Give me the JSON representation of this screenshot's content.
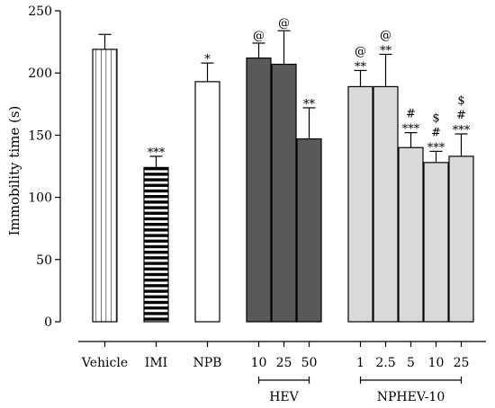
{
  "chart_data": {
    "type": "bar",
    "xlabel": "",
    "ylabel": "Immobility time (s)",
    "ylim": [
      0,
      250
    ],
    "yticks": [
      0,
      50,
      100,
      150,
      200,
      250
    ],
    "grid": false,
    "legend": "none",
    "bars": [
      {
        "label": "Vehicle",
        "value": 219,
        "error": 12,
        "fill": "vertical-stripes",
        "sig": []
      },
      {
        "label": "IMI",
        "value": 124,
        "error": 9,
        "fill": "horizontal-stripes",
        "sig": [
          "***"
        ]
      },
      {
        "label": "NPB",
        "value": 193,
        "error": 15,
        "fill": "#ffffff",
        "sig": [
          "*"
        ]
      },
      {
        "label": "10",
        "value": 212,
        "error": 12,
        "fill": "#595959",
        "sig": [
          "@"
        ]
      },
      {
        "label": "25",
        "value": 207,
        "error": 27,
        "fill": "#595959",
        "sig": [
          "@"
        ]
      },
      {
        "label": "50",
        "value": 147,
        "error": 25,
        "fill": "#595959",
        "sig": [
          "**"
        ]
      },
      {
        "label": "1",
        "value": 189,
        "error": 13,
        "fill": "#d9d9d9",
        "sig": [
          "**",
          "@"
        ]
      },
      {
        "label": "2.5",
        "value": 189,
        "error": 26,
        "fill": "#d9d9d9",
        "sig": [
          "**",
          "@"
        ]
      },
      {
        "label": "5",
        "value": 140,
        "error": 12,
        "fill": "#d9d9d9",
        "sig": [
          "***",
          "#"
        ]
      },
      {
        "label": "10",
        "value": 128,
        "error": 9,
        "fill": "#d9d9d9",
        "sig": [
          "***",
          "#",
          "$"
        ]
      },
      {
        "label": "25",
        "value": 133,
        "error": 18,
        "fill": "#d9d9d9",
        "sig": [
          "***",
          "#",
          "$"
        ]
      }
    ],
    "groups": [
      {
        "label": "HEV",
        "bar_indices": [
          3,
          4,
          5
        ]
      },
      {
        "label": "NPHEV-10",
        "bar_indices": [
          6,
          7,
          8,
          9,
          10
        ]
      }
    ]
  }
}
